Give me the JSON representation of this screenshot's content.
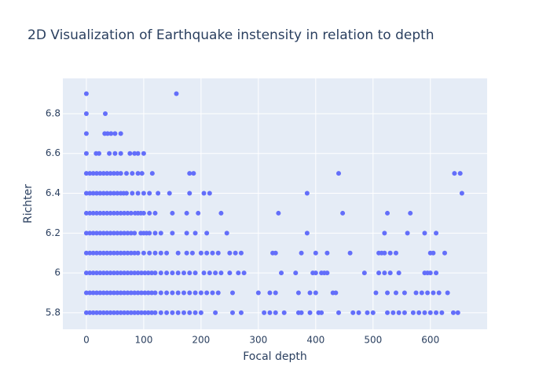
{
  "chart_data": {
    "type": "scatter",
    "title": "2D Visualization of Earthquake instensity in relation to depth",
    "x_label": "Focal depth",
    "y_label": "Richter",
    "color": "#636efa",
    "grid": true,
    "xlim": [
      -41,
      699
    ],
    "ylim": [
      5.717,
      6.977
    ],
    "xticks": [
      0,
      100,
      200,
      300,
      400,
      500,
      600
    ],
    "yticks": [
      5.8,
      6,
      6.2,
      6.4,
      6.6,
      6.8
    ],
    "x": [
      0,
      6,
      12,
      18,
      24,
      30,
      36,
      42,
      48,
      54,
      60,
      66,
      72,
      78,
      84,
      90,
      96,
      102,
      108,
      114,
      120,
      130,
      140,
      150,
      160,
      170,
      180,
      190,
      200,
      225,
      255,
      270,
      310,
      320,
      330,
      345,
      370,
      375,
      390,
      405,
      410,
      440,
      465,
      475,
      490,
      500,
      525,
      535,
      545,
      555,
      570,
      580,
      590,
      600,
      610,
      620,
      640,
      648,
      0,
      6,
      12,
      18,
      24,
      30,
      36,
      42,
      48,
      54,
      60,
      66,
      72,
      78,
      84,
      90,
      96,
      102,
      108,
      114,
      120,
      130,
      140,
      150,
      160,
      170,
      180,
      190,
      200,
      210,
      220,
      230,
      255,
      300,
      320,
      330,
      370,
      390,
      400,
      430,
      435,
      505,
      525,
      540,
      555,
      575,
      585,
      595,
      605,
      615,
      630,
      0,
      6,
      12,
      18,
      24,
      30,
      36,
      42,
      48,
      54,
      60,
      66,
      72,
      78,
      84,
      90,
      96,
      102,
      108,
      114,
      120,
      130,
      140,
      150,
      160,
      170,
      180,
      190,
      205,
      215,
      225,
      235,
      250,
      265,
      275,
      340,
      365,
      395,
      400,
      410,
      415,
      420,
      485,
      510,
      520,
      530,
      545,
      590,
      595,
      600,
      610,
      0,
      6,
      12,
      18,
      24,
      30,
      36,
      42,
      48,
      54,
      60,
      66,
      72,
      78,
      84,
      90,
      100,
      110,
      120,
      130,
      140,
      160,
      175,
      185,
      200,
      210,
      220,
      230,
      250,
      260,
      270,
      325,
      330,
      375,
      400,
      420,
      460,
      510,
      515,
      520,
      530,
      540,
      600,
      605,
      625,
      0,
      6,
      12,
      18,
      24,
      30,
      36,
      42,
      48,
      54,
      60,
      66,
      72,
      78,
      84,
      95,
      100,
      105,
      110,
      120,
      130,
      150,
      175,
      190,
      210,
      245,
      385,
      520,
      560,
      590,
      610,
      0,
      6,
      12,
      18,
      24,
      30,
      36,
      42,
      48,
      54,
      60,
      66,
      72,
      78,
      85,
      90,
      95,
      100,
      110,
      120,
      150,
      175,
      195,
      235,
      335,
      447,
      525,
      565,
      0,
      6,
      12,
      18,
      24,
      30,
      36,
      42,
      48,
      54,
      60,
      65,
      70,
      80,
      90,
      100,
      110,
      125,
      145,
      180,
      205,
      215,
      385,
      655,
      0,
      6,
      12,
      18,
      24,
      30,
      36,
      42,
      48,
      54,
      60,
      70,
      80,
      90,
      97,
      115,
      180,
      187,
      440,
      642,
      652,
      0,
      17,
      22,
      40,
      50,
      60,
      76,
      84,
      90,
      100,
      0,
      32,
      37,
      43,
      50,
      60,
      0,
      33,
      0,
      157
    ],
    "y": [
      5.8,
      5.8,
      5.8,
      5.8,
      5.8,
      5.8,
      5.8,
      5.8,
      5.8,
      5.8,
      5.8,
      5.8,
      5.8,
      5.8,
      5.8,
      5.8,
      5.8,
      5.8,
      5.8,
      5.8,
      5.8,
      5.8,
      5.8,
      5.8,
      5.8,
      5.8,
      5.8,
      5.8,
      5.8,
      5.8,
      5.8,
      5.8,
      5.8,
      5.8,
      5.8,
      5.8,
      5.8,
      5.8,
      5.8,
      5.8,
      5.8,
      5.8,
      5.8,
      5.8,
      5.8,
      5.8,
      5.8,
      5.8,
      5.8,
      5.8,
      5.8,
      5.8,
      5.8,
      5.8,
      5.8,
      5.8,
      5.8,
      5.8,
      5.9,
      5.9,
      5.9,
      5.9,
      5.9,
      5.9,
      5.9,
      5.9,
      5.9,
      5.9,
      5.9,
      5.9,
      5.9,
      5.9,
      5.9,
      5.9,
      5.9,
      5.9,
      5.9,
      5.9,
      5.9,
      5.9,
      5.9,
      5.9,
      5.9,
      5.9,
      5.9,
      5.9,
      5.9,
      5.9,
      5.9,
      5.9,
      5.9,
      5.9,
      5.9,
      5.9,
      5.9,
      5.9,
      5.9,
      5.9,
      5.9,
      5.9,
      5.9,
      5.9,
      5.9,
      5.9,
      5.9,
      5.9,
      5.9,
      5.9,
      5.9,
      6,
      6,
      6,
      6,
      6,
      6,
      6,
      6,
      6,
      6,
      6,
      6,
      6,
      6,
      6,
      6,
      6,
      6,
      6,
      6,
      6,
      6,
      6,
      6,
      6,
      6,
      6,
      6,
      6,
      6,
      6,
      6,
      6,
      6,
      6,
      6,
      6,
      6,
      6,
      6,
      6,
      6,
      6,
      6,
      6,
      6,
      6,
      6,
      6,
      6,
      6,
      6.1,
      6.1,
      6.1,
      6.1,
      6.1,
      6.1,
      6.1,
      6.1,
      6.1,
      6.1,
      6.1,
      6.1,
      6.1,
      6.1,
      6.1,
      6.1,
      6.1,
      6.1,
      6.1,
      6.1,
      6.1,
      6.1,
      6.1,
      6.1,
      6.1,
      6.1,
      6.1,
      6.1,
      6.1,
      6.1,
      6.1,
      6.1,
      6.1,
      6.1,
      6.1,
      6.1,
      6.1,
      6.1,
      6.1,
      6.1,
      6.1,
      6.1,
      6.1,
      6.1,
      6.1,
      6.2,
      6.2,
      6.2,
      6.2,
      6.2,
      6.2,
      6.2,
      6.2,
      6.2,
      6.2,
      6.2,
      6.2,
      6.2,
      6.2,
      6.2,
      6.2,
      6.2,
      6.2,
      6.2,
      6.2,
      6.2,
      6.2,
      6.2,
      6.2,
      6.2,
      6.2,
      6.2,
      6.2,
      6.2,
      6.2,
      6.2,
      6.3,
      6.3,
      6.3,
      6.3,
      6.3,
      6.3,
      6.3,
      6.3,
      6.3,
      6.3,
      6.3,
      6.3,
      6.3,
      6.3,
      6.3,
      6.3,
      6.3,
      6.3,
      6.3,
      6.3,
      6.3,
      6.3,
      6.3,
      6.3,
      6.3,
      6.3,
      6.3,
      6.3,
      6.4,
      6.4,
      6.4,
      6.4,
      6.4,
      6.4,
      6.4,
      6.4,
      6.4,
      6.4,
      6.4,
      6.4,
      6.4,
      6.4,
      6.4,
      6.4,
      6.4,
      6.4,
      6.4,
      6.4,
      6.4,
      6.4,
      6.4,
      6.4,
      6.5,
      6.5,
      6.5,
      6.5,
      6.5,
      6.5,
      6.5,
      6.5,
      6.5,
      6.5,
      6.5,
      6.5,
      6.5,
      6.5,
      6.5,
      6.5,
      6.5,
      6.5,
      6.5,
      6.5,
      6.5,
      6.6,
      6.6,
      6.6,
      6.6,
      6.6,
      6.6,
      6.6,
      6.6,
      6.6,
      6.6,
      6.7,
      6.7,
      6.7,
      6.7,
      6.7,
      6.7,
      6.8,
      6.8,
      6.9,
      6.9
    ]
  }
}
